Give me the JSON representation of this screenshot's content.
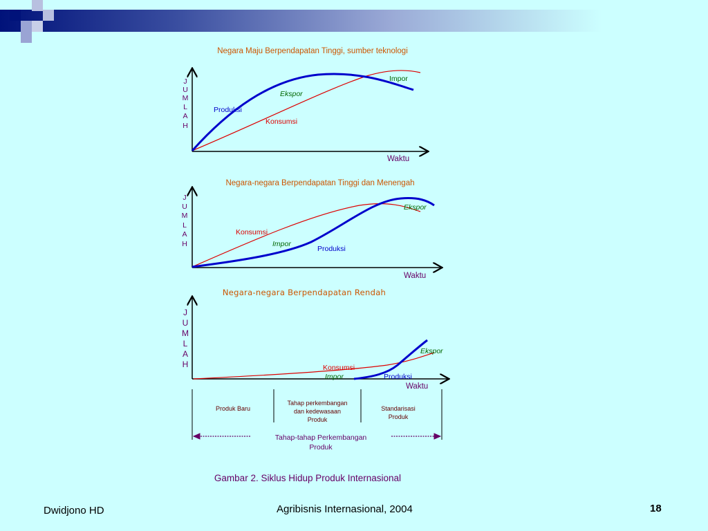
{
  "panels": [
    {
      "title": "Negara Maju Berpendapatan Tinggi, sumber teknologi",
      "y_axis_letters": [
        "J",
        "U",
        "M",
        "L",
        "A",
        "H"
      ],
      "x_label": "Waktu",
      "labels": {
        "produksi": "Produksi",
        "konsumsi": "Konsumsi",
        "ekspor": "Ekspor",
        "impor": "Impor"
      }
    },
    {
      "title": "Negara-negara  Berpendapatan Tinggi dan Menengah",
      "y_axis_letters": [
        "J",
        "U",
        "M",
        "L",
        "A",
        "H"
      ],
      "x_label": "Waktu",
      "labels": {
        "produksi": "Produksi",
        "konsumsi": "Konsumsi",
        "ekspor": "Ekspor",
        "impor": "Impor"
      }
    },
    {
      "title": "Negara-negara  Berpendapatan Rendah",
      "y_axis_letters": [
        "J",
        "U",
        "M",
        "L",
        "A",
        "H"
      ],
      "x_label": "Waktu",
      "labels": {
        "produksi": "Produksi",
        "konsumsi": "Konsumsi",
        "ekspor": "Ekspor",
        "impor": "Impor"
      }
    }
  ],
  "stages": {
    "stage1": "Produk Baru",
    "stage2": [
      "Tahap perkembangan",
      "dan kedewasaan",
      "Produk"
    ],
    "stage3": [
      "Standarisasi",
      "Produk"
    ],
    "caption": [
      "Tahap-tahap  Perkembangan",
      "Produk"
    ]
  },
  "figure_caption": "Gambar 2.  Siklus Hidup Produk Internasional",
  "footer": {
    "author": "Dwidjono HD",
    "center": "Agribisnis Internasional, 2004",
    "page_number": "18"
  },
  "colors": {
    "title_orange": "#cc5500",
    "produksi_blue": "#0000cc",
    "konsumsi_red": "#dd0000",
    "ekspor_green": "#006600",
    "axis_label_purple": "#660066",
    "background": "#ccffff"
  }
}
